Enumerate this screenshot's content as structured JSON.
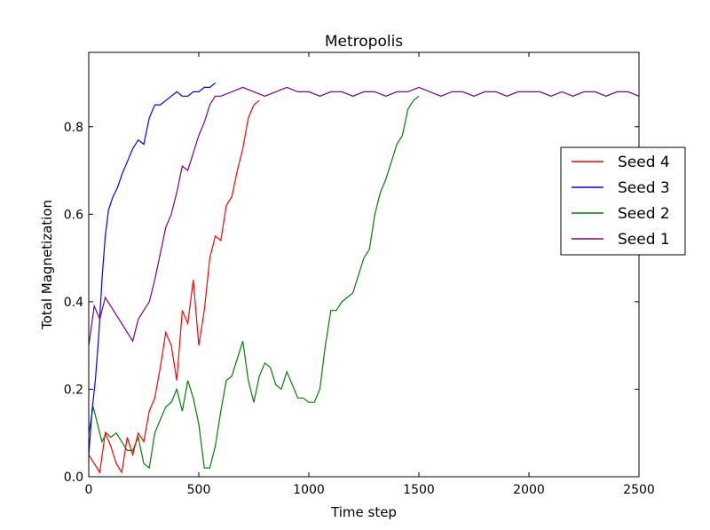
{
  "chart_data": {
    "type": "line",
    "title": "Metropolis",
    "xlabel": "Time step",
    "ylabel": "Total Magnetization",
    "xlim": [
      0,
      2500
    ],
    "ylim": [
      0,
      0.97
    ],
    "xticks": [
      0,
      500,
      1000,
      1500,
      2000,
      2500
    ],
    "xtick_labels": [
      "0",
      "500",
      "1000",
      "1500",
      "2000",
      "2500"
    ],
    "yticks": [
      0.0,
      0.2,
      0.4,
      0.6,
      0.8
    ],
    "ytick_labels": [
      "0.0",
      "0.2",
      "0.4",
      "0.6",
      "0.8"
    ],
    "grid": false,
    "legend_position": "right",
    "series": [
      {
        "name": "Seed 4",
        "color": "#ff0000",
        "x": [
          0,
          25,
          50,
          75,
          100,
          125,
          150,
          175,
          200,
          225,
          250,
          275,
          300,
          325,
          350,
          375,
          400,
          425,
          450,
          475,
          500,
          525,
          550,
          575,
          600,
          625,
          650,
          675,
          700,
          725,
          750,
          775
        ],
        "y": [
          0.05,
          0.03,
          0.01,
          0.1,
          0.07,
          0.03,
          0.01,
          0.09,
          0.05,
          0.1,
          0.08,
          0.15,
          0.18,
          0.25,
          0.33,
          0.3,
          0.22,
          0.38,
          0.35,
          0.45,
          0.3,
          0.38,
          0.5,
          0.55,
          0.54,
          0.62,
          0.64,
          0.7,
          0.75,
          0.82,
          0.85,
          0.86
        ]
      },
      {
        "name": "Seed 3",
        "color": "#0000ff",
        "x": [
          0,
          15,
          30,
          45,
          60,
          75,
          90,
          110,
          130,
          150,
          175,
          200,
          225,
          250,
          275,
          300,
          325,
          350,
          375,
          400,
          425,
          450,
          475,
          500,
          525,
          550,
          575
        ],
        "y": [
          0.05,
          0.15,
          0.22,
          0.32,
          0.45,
          0.55,
          0.61,
          0.64,
          0.66,
          0.69,
          0.72,
          0.75,
          0.77,
          0.76,
          0.82,
          0.85,
          0.85,
          0.86,
          0.87,
          0.88,
          0.87,
          0.87,
          0.88,
          0.88,
          0.89,
          0.89,
          0.9
        ]
      },
      {
        "name": "Seed 2",
        "color": "#008000",
        "x": [
          0,
          20,
          40,
          60,
          80,
          100,
          125,
          150,
          175,
          200,
          225,
          250,
          275,
          300,
          325,
          350,
          375,
          400,
          425,
          450,
          475,
          500,
          525,
          550,
          575,
          600,
          625,
          650,
          675,
          700,
          725,
          750,
          775,
          800,
          825,
          850,
          875,
          900,
          925,
          950,
          975,
          1000,
          1025,
          1050,
          1075,
          1100,
          1125,
          1150,
          1175,
          1200,
          1225,
          1250,
          1275,
          1300,
          1325,
          1350,
          1375,
          1400,
          1425,
          1450,
          1475,
          1500
        ],
        "y": [
          0.1,
          0.16,
          0.12,
          0.08,
          0.1,
          0.09,
          0.1,
          0.08,
          0.06,
          0.06,
          0.09,
          0.03,
          0.02,
          0.1,
          0.13,
          0.16,
          0.17,
          0.2,
          0.15,
          0.22,
          0.18,
          0.12,
          0.02,
          0.02,
          0.07,
          0.15,
          0.22,
          0.23,
          0.27,
          0.31,
          0.22,
          0.17,
          0.23,
          0.26,
          0.25,
          0.21,
          0.2,
          0.24,
          0.21,
          0.18,
          0.18,
          0.17,
          0.17,
          0.2,
          0.3,
          0.38,
          0.38,
          0.4,
          0.41,
          0.42,
          0.46,
          0.5,
          0.52,
          0.6,
          0.65,
          0.68,
          0.72,
          0.76,
          0.78,
          0.84,
          0.86,
          0.87
        ]
      },
      {
        "name": "Seed 1",
        "color": "#800080",
        "x": [
          0,
          25,
          50,
          75,
          100,
          125,
          150,
          175,
          200,
          225,
          250,
          275,
          300,
          325,
          350,
          375,
          400,
          425,
          450,
          475,
          500,
          525,
          550,
          575,
          600,
          650,
          700,
          750,
          800,
          850,
          900,
          950,
          1000,
          1050,
          1100,
          1150,
          1200,
          1250,
          1300,
          1350,
          1400,
          1450,
          1500,
          1550,
          1600,
          1650,
          1700,
          1750,
          1800,
          1850,
          1900,
          1950,
          2000,
          2050,
          2100,
          2150,
          2200,
          2250,
          2300,
          2350,
          2400,
          2450,
          2500
        ],
        "y": [
          0.3,
          0.39,
          0.36,
          0.41,
          0.39,
          0.37,
          0.35,
          0.33,
          0.31,
          0.36,
          0.38,
          0.4,
          0.45,
          0.51,
          0.57,
          0.6,
          0.65,
          0.71,
          0.7,
          0.74,
          0.78,
          0.81,
          0.85,
          0.87,
          0.87,
          0.88,
          0.89,
          0.88,
          0.87,
          0.88,
          0.89,
          0.88,
          0.88,
          0.87,
          0.88,
          0.88,
          0.87,
          0.88,
          0.88,
          0.87,
          0.88,
          0.88,
          0.89,
          0.88,
          0.87,
          0.88,
          0.88,
          0.87,
          0.88,
          0.88,
          0.87,
          0.88,
          0.88,
          0.88,
          0.87,
          0.88,
          0.87,
          0.88,
          0.88,
          0.87,
          0.88,
          0.88,
          0.87
        ]
      }
    ]
  }
}
